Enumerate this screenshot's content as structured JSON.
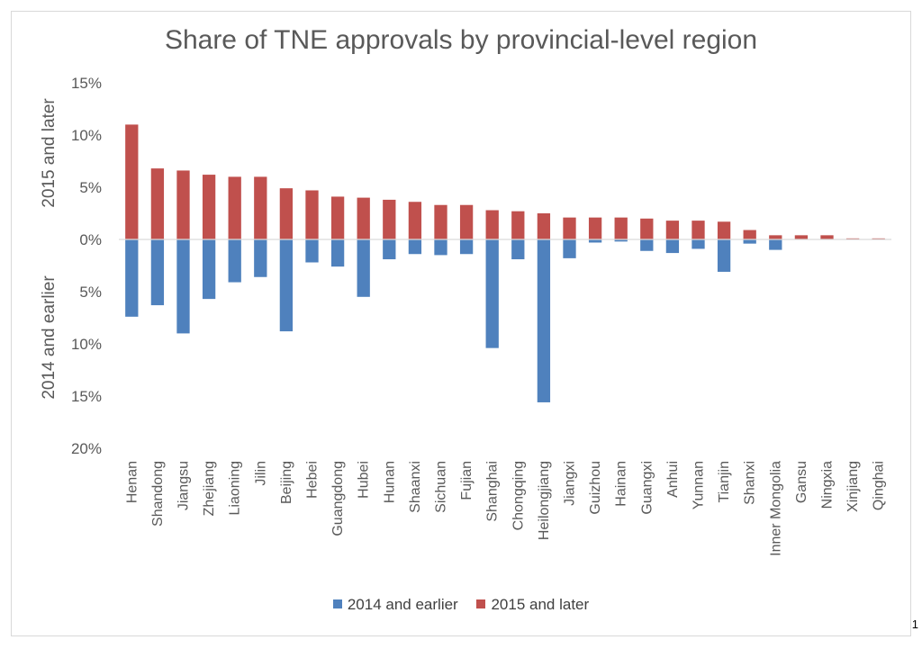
{
  "page_number": "1",
  "colors": {
    "earlier": "#4f81bd",
    "later": "#c0504d",
    "axis": "#d9d9d9",
    "text": "#595959"
  },
  "chart_data": {
    "type": "bar",
    "title": "Share of TNE approvals by provincial-level region",
    "ylabel_top": "2015 and later",
    "ylabel_bottom": "2014 and earlier",
    "ylim": [
      -20,
      15
    ],
    "y_ticks": [
      {
        "value": 15,
        "label": "15%"
      },
      {
        "value": 10,
        "label": "10%"
      },
      {
        "value": 5,
        "label": "5%"
      },
      {
        "value": 0,
        "label": "0%"
      },
      {
        "value": -5,
        "label": "5%"
      },
      {
        "value": -10,
        "label": "10%"
      },
      {
        "value": -15,
        "label": "15%"
      },
      {
        "value": -20,
        "label": "20%"
      }
    ],
    "categories": [
      "Henan",
      "Shandong",
      "Jiangsu",
      "Zhejiang",
      "Liaoning",
      "Jilin",
      "Beijing",
      "Hebei",
      "Guangdong",
      "Hubei",
      "Hunan",
      "Shaanxi",
      "Sichuan",
      "Fujian",
      "Shanghai",
      "Chongqing",
      "Heilongjiang",
      "Jiangxi",
      "Guizhou",
      "Hainan",
      "Guangxi",
      "Anhui",
      "Yunnan",
      "Tianjin",
      "Shanxi",
      "Inner Mongolia",
      "Gansu",
      "Ningxia",
      "Xinjiang",
      "Qinghai"
    ],
    "series": [
      {
        "name": "2014 and earlier",
        "values": [
          7.4,
          6.3,
          9.0,
          5.7,
          4.1,
          3.6,
          8.8,
          2.2,
          2.6,
          5.5,
          1.9,
          1.4,
          1.5,
          1.4,
          10.4,
          1.9,
          15.6,
          1.8,
          0.3,
          0.2,
          1.1,
          1.3,
          0.9,
          3.1,
          0.4,
          1.0,
          0,
          0,
          0,
          0
        ]
      },
      {
        "name": "2015 and later",
        "values": [
          11.0,
          6.8,
          6.6,
          6.2,
          6.0,
          6.0,
          4.9,
          4.7,
          4.1,
          4.0,
          3.8,
          3.6,
          3.3,
          3.3,
          2.8,
          2.7,
          2.5,
          2.1,
          2.1,
          2.1,
          2.0,
          1.8,
          1.8,
          1.7,
          0.9,
          0.4,
          0.4,
          0.4,
          0.1,
          0.1
        ]
      }
    ],
    "legend_position": "bottom",
    "grid": false
  }
}
